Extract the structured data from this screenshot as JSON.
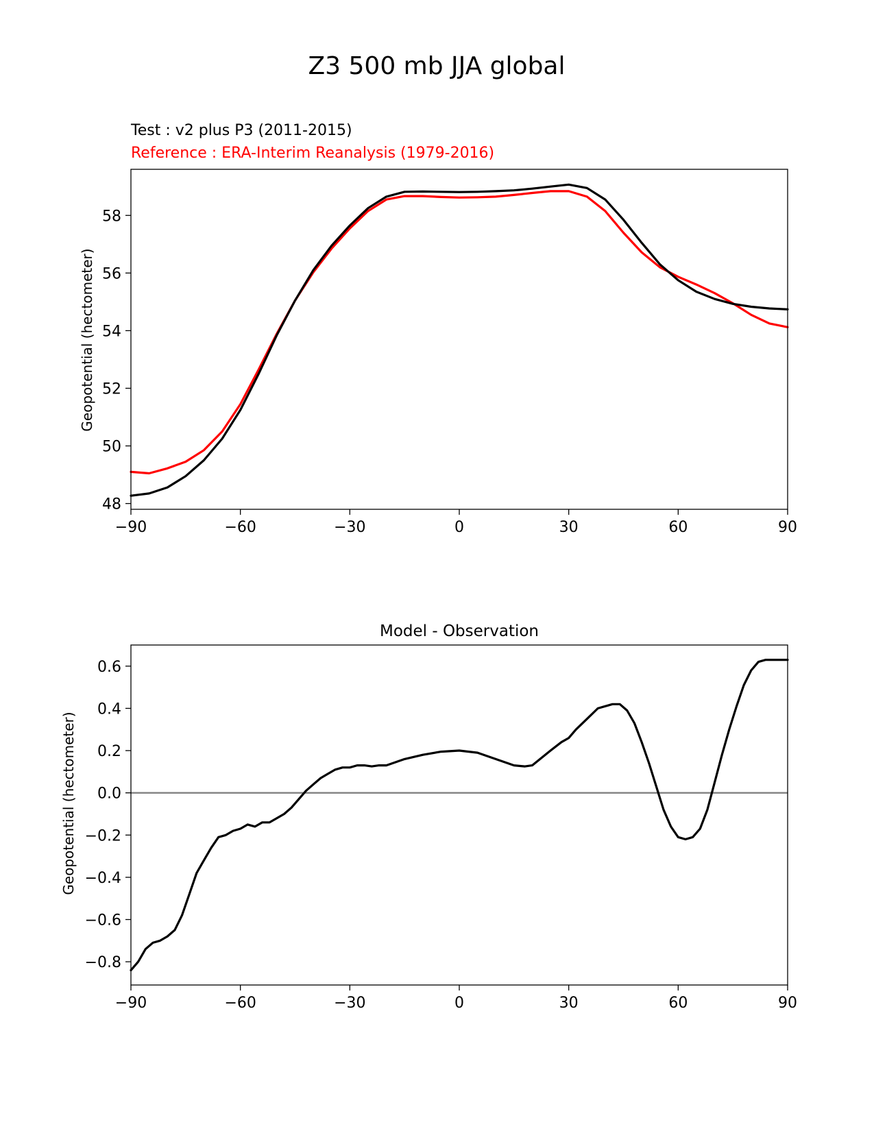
{
  "figure_title": "Z3 500 mb JJA global",
  "chart_data": [
    {
      "type": "line",
      "test_label": "Test : v2 plus P3 (2011-2015)",
      "reference_label": "Reference : ERA-Interim Reanalysis (1979-2016)",
      "title": "",
      "xlabel": "",
      "ylabel": "Geopotential (hectometer)",
      "xlim": [
        -90,
        90
      ],
      "ylim": [
        47.8,
        59.6
      ],
      "xticks": [
        -90,
        -60,
        -30,
        0,
        30,
        60,
        90
      ],
      "xtick_labels": [
        "−90",
        "−60",
        "−30",
        "0",
        "30",
        "60",
        "90"
      ],
      "yticks": [
        48,
        50,
        52,
        54,
        56,
        58
      ],
      "ytick_labels": [
        "48",
        "50",
        "52",
        "54",
        "56",
        "58"
      ],
      "colors": {
        "test": "#000000",
        "reference": "#ff0000"
      },
      "x": [
        -90,
        -85,
        -80,
        -75,
        -70,
        -65,
        -60,
        -55,
        -50,
        -45,
        -40,
        -35,
        -30,
        -25,
        -20,
        -15,
        -10,
        -5,
        0,
        5,
        10,
        15,
        20,
        25,
        30,
        35,
        40,
        45,
        50,
        55,
        60,
        65,
        70,
        75,
        80,
        85,
        90
      ],
      "series": [
        {
          "name": "Test",
          "color": "#000000",
          "values": [
            48.27,
            48.35,
            48.56,
            48.95,
            49.5,
            50.25,
            51.25,
            52.5,
            53.85,
            55.05,
            56.1,
            56.95,
            57.65,
            58.25,
            58.65,
            58.82,
            58.83,
            58.82,
            58.81,
            58.82,
            58.84,
            58.87,
            58.93,
            59.0,
            59.07,
            58.95,
            58.55,
            57.85,
            57.05,
            56.3,
            55.75,
            55.35,
            55.1,
            54.93,
            54.83,
            54.77,
            54.74
          ]
        },
        {
          "name": "Reference",
          "color": "#ff0000",
          "values": [
            49.1,
            49.05,
            49.22,
            49.45,
            49.85,
            50.5,
            51.45,
            52.65,
            53.9,
            55.05,
            56.03,
            56.85,
            57.55,
            58.15,
            58.55,
            58.67,
            58.67,
            58.64,
            58.62,
            58.63,
            58.65,
            58.71,
            58.78,
            58.84,
            58.84,
            58.65,
            58.15,
            57.4,
            56.72,
            56.2,
            55.87,
            55.6,
            55.3,
            54.95,
            54.55,
            54.25,
            54.12
          ]
        }
      ]
    },
    {
      "type": "line",
      "title": "Model - Observation",
      "xlabel": "",
      "ylabel": "Geopotential (hectometer)",
      "xlim": [
        -90,
        90
      ],
      "ylim": [
        -0.91,
        0.7
      ],
      "xticks": [
        -90,
        -60,
        -30,
        0,
        30,
        60,
        90
      ],
      "xtick_labels": [
        "−90",
        "−60",
        "−30",
        "0",
        "30",
        "60",
        "90"
      ],
      "yticks": [
        -0.8,
        -0.6,
        -0.4,
        -0.2,
        0.0,
        0.2,
        0.4,
        0.6
      ],
      "ytick_labels": [
        "−0.8",
        "−0.6",
        "−0.4",
        "−0.2",
        "0.0",
        "0.2",
        "0.4",
        "0.6"
      ],
      "zero_line_color": "#808080",
      "x": [
        -90,
        -88,
        -86,
        -84,
        -82,
        -80,
        -78,
        -76,
        -74,
        -72,
        -70,
        -68,
        -66,
        -64,
        -62,
        -60,
        -58,
        -56,
        -54,
        -52,
        -50,
        -48,
        -46,
        -44,
        -42,
        -40,
        -38,
        -36,
        -34,
        -32,
        -30,
        -28,
        -26,
        -24,
        -22,
        -20,
        -15,
        -10,
        -5,
        0,
        5,
        10,
        15,
        18,
        20,
        25,
        28,
        30,
        32,
        35,
        38,
        40,
        42,
        44,
        46,
        48,
        50,
        52,
        54,
        56,
        58,
        60,
        62,
        64,
        66,
        68,
        70,
        72,
        74,
        76,
        78,
        80,
        82,
        84,
        86,
        88,
        90
      ],
      "series": [
        {
          "name": "Model - Observation",
          "color": "#000000",
          "values": [
            -0.84,
            -0.8,
            -0.74,
            -0.71,
            -0.7,
            -0.68,
            -0.65,
            -0.58,
            -0.48,
            -0.38,
            -0.32,
            -0.26,
            -0.21,
            -0.2,
            -0.18,
            -0.17,
            -0.15,
            -0.16,
            -0.14,
            -0.14,
            -0.12,
            -0.1,
            -0.07,
            -0.03,
            0.01,
            0.04,
            0.07,
            0.09,
            0.11,
            0.12,
            0.12,
            0.13,
            0.13,
            0.125,
            0.13,
            0.13,
            0.16,
            0.18,
            0.195,
            0.2,
            0.19,
            0.16,
            0.13,
            0.125,
            0.13,
            0.2,
            0.24,
            0.26,
            0.3,
            0.35,
            0.4,
            0.41,
            0.42,
            0.42,
            0.39,
            0.33,
            0.24,
            0.14,
            0.03,
            -0.08,
            -0.16,
            -0.21,
            -0.22,
            -0.21,
            -0.17,
            -0.08,
            0.05,
            0.18,
            0.3,
            0.41,
            0.51,
            0.58,
            0.62,
            0.63,
            0.63,
            0.63,
            0.63
          ]
        }
      ]
    }
  ]
}
